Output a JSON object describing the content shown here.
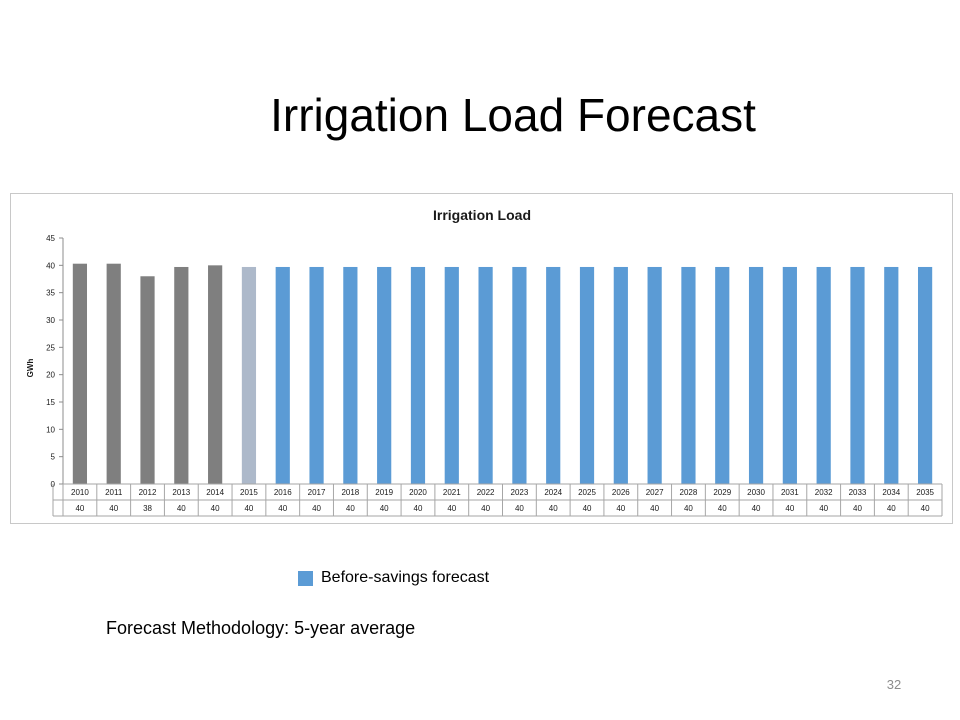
{
  "slide": {
    "title": "Irrigation Load Forecast",
    "methodology": "Forecast Methodology: 5-year average",
    "legend_label": "Before-savings forecast",
    "page_number": "32"
  },
  "colors": {
    "historical": "#7f7f7f",
    "base_year": "#adb9ca",
    "forecast": "#5b9bd5"
  },
  "chart_data": {
    "type": "bar",
    "title": "Irrigation Load",
    "xlabel": "",
    "ylabel": "GWh",
    "ylim": [
      0,
      45
    ],
    "yticks": [
      0,
      5,
      10,
      15,
      20,
      25,
      30,
      35,
      40,
      45
    ],
    "grid": false,
    "categories": [
      "2010",
      "2011",
      "2012",
      "2013",
      "2014",
      "2015",
      "2016",
      "2017",
      "2018",
      "2019",
      "2020",
      "2021",
      "2022",
      "2023",
      "2024",
      "2025",
      "2026",
      "2027",
      "2028",
      "2029",
      "2030",
      "2031",
      "2032",
      "2033",
      "2034",
      "2035"
    ],
    "values": [
      40.3,
      40.3,
      38.0,
      39.7,
      40.0,
      39.7,
      39.7,
      39.7,
      39.7,
      39.7,
      39.7,
      39.7,
      39.7,
      39.7,
      39.7,
      39.7,
      39.7,
      39.7,
      39.7,
      39.7,
      39.7,
      39.7,
      39.7,
      39.7,
      39.7,
      39.7
    ],
    "bar_groups": [
      "historical",
      "historical",
      "historical",
      "historical",
      "historical",
      "base_year",
      "forecast",
      "forecast",
      "forecast",
      "forecast",
      "forecast",
      "forecast",
      "forecast",
      "forecast",
      "forecast",
      "forecast",
      "forecast",
      "forecast",
      "forecast",
      "forecast",
      "forecast",
      "forecast",
      "forecast",
      "forecast",
      "forecast",
      "forecast"
    ],
    "data_table": [
      "40",
      "40",
      "38",
      "40",
      "40",
      "40",
      "40",
      "40",
      "40",
      "40",
      "40",
      "40",
      "40",
      "40",
      "40",
      "40",
      "40",
      "40",
      "40",
      "40",
      "40",
      "40",
      "40",
      "40",
      "40",
      "40"
    ]
  }
}
